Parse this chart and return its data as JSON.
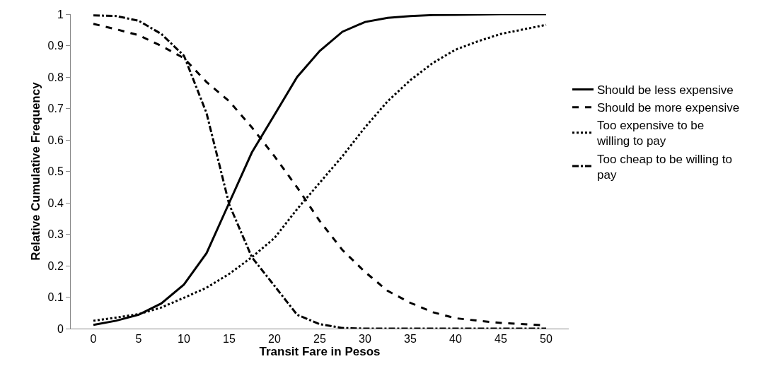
{
  "chart_data": {
    "type": "line",
    "xlabel": "Transit Fare in Pesos",
    "ylabel": "Relative Cumulative Frequency",
    "xlim": [
      -2.5,
      52.5
    ],
    "xticks": [
      0,
      5,
      10,
      15,
      20,
      25,
      30,
      35,
      40,
      45,
      50
    ],
    "ylim": [
      0,
      1
    ],
    "yticks": [
      0,
      0.1,
      0.2,
      0.3,
      0.4,
      0.5,
      0.6,
      0.7,
      0.8,
      0.9,
      1
    ],
    "grid": false,
    "legend": "right",
    "marker": "none",
    "x": [
      0,
      2.5,
      5,
      7.5,
      10,
      12.5,
      15,
      17.5,
      20,
      22.5,
      25,
      27.5,
      30,
      32.5,
      35,
      37.5,
      40,
      42.5,
      45,
      50
    ],
    "series": [
      {
        "name": "Should be less expensive",
        "color": "#000000",
        "line_style": "solid",
        "values": [
          0.012,
          0.025,
          0.044,
          0.08,
          0.14,
          0.24,
          0.4,
          0.56,
          0.68,
          0.8,
          0.883,
          0.944,
          0.975,
          0.988,
          0.994,
          0.997,
          0.998,
          0.999,
          1.0,
          1.0
        ]
      },
      {
        "name": "Should be more expensive",
        "color": "#000000",
        "line_style": "dashed",
        "values": [
          0.969,
          0.952,
          0.933,
          0.899,
          0.86,
          0.784,
          0.723,
          0.64,
          0.548,
          0.449,
          0.342,
          0.25,
          0.18,
          0.12,
          0.082,
          0.052,
          0.033,
          0.025,
          0.018,
          0.01
        ]
      },
      {
        "name": "Too expensive to be willing to pay",
        "color": "#000000",
        "line_style": "dotted",
        "values": [
          0.025,
          0.035,
          0.046,
          0.067,
          0.098,
          0.13,
          0.174,
          0.227,
          0.288,
          0.38,
          0.464,
          0.548,
          0.64,
          0.723,
          0.79,
          0.845,
          0.887,
          0.914,
          0.937,
          0.966
        ]
      },
      {
        "name": "Too cheap to be willing to pay",
        "color": "#000000",
        "line_style": "dashdot",
        "values": [
          0.996,
          0.994,
          0.979,
          0.937,
          0.868,
          0.685,
          0.395,
          0.227,
          0.136,
          0.044,
          0.014,
          0.002,
          0,
          0,
          0,
          0,
          0,
          0,
          0,
          0
        ]
      }
    ]
  }
}
